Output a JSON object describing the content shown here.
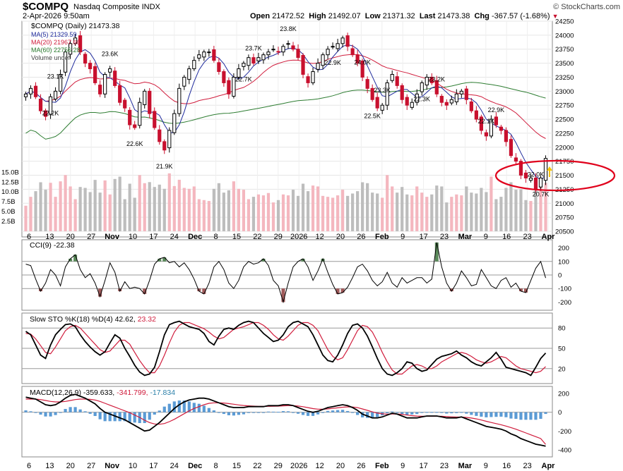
{
  "header": {
    "symbol": "$COMPQ",
    "exchange": "Nasdaq Composite INDX",
    "datetime": "2-Apr-2026 9:50am",
    "brand": "© StockCharts.com",
    "open_label": "Open",
    "open_value": "21472.52",
    "high_label": "High",
    "high_value": "21492.07",
    "low_label": "Low",
    "low_value": "21371.32",
    "last_label": "Last",
    "last_value": "21473.38",
    "chg_label": "Chg",
    "chg_value": "-367.57 (-1.68%)"
  },
  "legend": {
    "price": "$COMPQ (Daily) 21473.38",
    "ma5": "MA(5) 21329.59",
    "ma20": "MA(20) 21967.66",
    "ma60": "MA(60) 22756.28",
    "volume": "Volume undef"
  },
  "colors": {
    "up": "#000000",
    "down": "#c8102e",
    "ma5": "#1f2a9c",
    "ma20": "#d01c3c",
    "ma60": "#2e7d32",
    "vol_up": "#f4b7bf",
    "vol_down": "#bdbdbd",
    "cci_pos": "#5a8a5a",
    "cci_neg": "#a05a5a",
    "macd_hist": "#5b9bd5",
    "circle": "#e0001b",
    "arrow": "#f5c400"
  },
  "chart_data": [
    {
      "type": "candlestick",
      "title": "$COMPQ (Daily) 21473.38",
      "ylim": [
        20500,
        24250
      ],
      "y_ticks": [
        20500,
        20750,
        21000,
        21250,
        21500,
        21750,
        22000,
        22250,
        22500,
        22750,
        23000,
        23250,
        23500,
        23750,
        24000,
        24250
      ],
      "x_tick_labels": [
        "6",
        "13",
        "20",
        "27",
        "Nov",
        "10",
        "17",
        "24",
        "Dec",
        "8",
        "15",
        "22",
        "29",
        "2026",
        "12",
        "20",
        "26",
        "Feb",
        "9",
        "17",
        "23",
        "Mar",
        "9",
        "16",
        "23",
        "Apr"
      ],
      "series": [
        {
          "name": "MA(5)",
          "last": 21329.59
        },
        {
          "name": "MA(20)",
          "last": 21967.66
        },
        {
          "name": "MA(60)",
          "last": 22756.28
        }
      ],
      "annotations": [
        "23.1K",
        "22.2K",
        "22.6K",
        "23.6K",
        "21.9K",
        "23.7K",
        "22.7K",
        "23.8K",
        "22.9K",
        "24.0K",
        "22.5K",
        "23.3K",
        "22.3K",
        "23.2K",
        "22.1K",
        "22.9K",
        "22.0K",
        "20.7K"
      ],
      "close_approx": [
        22950,
        23050,
        22900,
        22650,
        22550,
        22900,
        23000,
        23300,
        23700,
        23850,
        23950,
        23700,
        23500,
        23400,
        23150,
        22950,
        23300,
        23400,
        23100,
        22800,
        22700,
        22400,
        22350,
        22800,
        23000,
        22600,
        22350,
        22100,
        21950,
        22300,
        22600,
        23050,
        23250,
        23400,
        23550,
        23650,
        23700,
        23700,
        23550,
        23350,
        23150,
        22950,
        23250,
        23400,
        23500,
        23600,
        23500,
        23600,
        23650,
        23700,
        23750,
        23700,
        23800,
        23850,
        23750,
        23600,
        23300,
        23150,
        23350,
        23500,
        23650,
        23750,
        23800,
        23850,
        23950,
        23800,
        23650,
        23500,
        23250,
        23050,
        22850,
        22700,
        22750,
        23150,
        23300,
        23100,
        22850,
        22750,
        22800,
        22950,
        23150,
        23250,
        23150,
        22950,
        22800,
        22750,
        22850,
        22950,
        23000,
        22850,
        22650,
        22500,
        22300,
        22200,
        22500,
        22400,
        22300,
        22100,
        21850,
        21750,
        21500,
        21450,
        21450,
        21250,
        21450,
        21800
      ]
    },
    {
      "type": "bar",
      "title": "Volume",
      "y_tick_labels": [
        "2.5B",
        "5.0B",
        "7.5B",
        "10.0B",
        "12.5B",
        "15.0B"
      ]
    },
    {
      "type": "line",
      "title": "CCI(9) -22.38",
      "ylim": [
        -250,
        250
      ],
      "y_ticks": [
        200,
        100,
        0,
        -100,
        -200
      ],
      "last": -22.38,
      "values": [
        80,
        70,
        -30,
        -120,
        -60,
        40,
        0,
        -80,
        60,
        120,
        150,
        40,
        -20,
        10,
        -60,
        -160,
        -40,
        90,
        20,
        -120,
        -50,
        -100,
        -90,
        -100,
        -140,
        -40,
        80,
        120,
        130,
        90,
        100,
        60,
        90,
        40,
        -30,
        -120,
        -140,
        -60,
        60,
        100,
        40,
        -60,
        -100,
        -40,
        60,
        100,
        80,
        90,
        120,
        70,
        -40,
        -80,
        -200,
        -60,
        60,
        100,
        120,
        60,
        -40,
        30,
        120,
        20,
        -70,
        -140,
        -130,
        -90,
        -20,
        60,
        80,
        30,
        -40,
        -80,
        -50,
        20,
        -60,
        -90,
        -20,
        -60,
        -40,
        -20,
        -20,
        -60,
        -30,
        240,
        60,
        -60,
        -120,
        -60,
        30,
        -20,
        -80,
        -70,
        40,
        -20,
        -80,
        -100,
        -40,
        -20,
        -90,
        -60,
        -120,
        -130,
        -40,
        50,
        100,
        -22
      ]
    },
    {
      "type": "line",
      "title": "Slow STO %K(18) %D(4) 42.62, 23.32",
      "ylim": [
        0,
        100
      ],
      "y_ticks": [
        80,
        50,
        20
      ],
      "series": [
        {
          "name": "%K(18)",
          "last": 42.62,
          "values": [
            75,
            70,
            55,
            40,
            35,
            55,
            70,
            78,
            85,
            86,
            82,
            70,
            60,
            52,
            45,
            40,
            45,
            58,
            70,
            65,
            50,
            38,
            25,
            15,
            10,
            12,
            22,
            45,
            70,
            85,
            88,
            90,
            86,
            82,
            80,
            78,
            72,
            60,
            55,
            68,
            78,
            80,
            78,
            84,
            88,
            90,
            88,
            80,
            72,
            66,
            60,
            62,
            70,
            82,
            88,
            90,
            86,
            82,
            70,
            55,
            40,
            32,
            30,
            40,
            55,
            72,
            84,
            86,
            80,
            68,
            52,
            35,
            20,
            12,
            10,
            14,
            20,
            30,
            28,
            20,
            16,
            18,
            26,
            34,
            38,
            40,
            42,
            46,
            40,
            36,
            30,
            26,
            24,
            30,
            36,
            44,
            34,
            22,
            20,
            18,
            16,
            14,
            10,
            22,
            35,
            43
          ]
        },
        {
          "name": "%D(4)",
          "last": 23.32,
          "values": [
            72,
            71,
            64,
            54,
            44,
            42,
            52,
            64,
            76,
            82,
            84,
            80,
            72,
            64,
            56,
            48,
            44,
            46,
            54,
            62,
            62,
            56,
            44,
            32,
            22,
            14,
            14,
            24,
            40,
            58,
            74,
            84,
            88,
            88,
            85,
            82,
            79,
            74,
            68,
            64,
            66,
            72,
            78,
            80,
            82,
            85,
            88,
            88,
            84,
            78,
            70,
            64,
            62,
            68,
            76,
            84,
            88,
            88,
            84,
            76,
            62,
            48,
            38,
            33,
            36,
            48,
            62,
            76,
            84,
            82,
            74,
            60,
            44,
            30,
            18,
            12,
            12,
            18,
            24,
            26,
            24,
            20,
            20,
            24,
            30,
            34,
            38,
            42,
            44,
            42,
            38,
            33,
            30,
            28,
            30,
            34,
            38,
            36,
            30,
            24,
            20,
            18,
            16,
            14,
            16,
            23
          ]
        }
      ]
    },
    {
      "type": "line",
      "title": "MACD(12,26,9) -359.633, -341.799, -17.834",
      "ylim": [
        -460,
        260
      ],
      "y_ticks": [
        200,
        0,
        -200,
        -400
      ],
      "series": [
        {
          "name": "MACD(12,26,9)",
          "last": -359.633,
          "values": [
            160,
            150,
            140,
            110,
            80,
            70,
            80,
            110,
            150,
            180,
            190,
            170,
            150,
            120,
            90,
            40,
            0,
            -20,
            -40,
            -60,
            -80,
            -110,
            -140,
            -170,
            -200,
            -190,
            -150,
            -110,
            -60,
            -10,
            40,
            80,
            110,
            130,
            140,
            150,
            150,
            140,
            120,
            100,
            80,
            60,
            50,
            50,
            50,
            60,
            60,
            60,
            60,
            70,
            70,
            70,
            80,
            80,
            70,
            50,
            30,
            10,
            0,
            10,
            30,
            50,
            60,
            70,
            80,
            70,
            50,
            20,
            -20,
            -40,
            -60,
            -60,
            -50,
            -30,
            -10,
            -20,
            -40,
            -60,
            -60,
            -60,
            -50,
            -40,
            -40,
            -40,
            -50,
            -60,
            -60,
            -60,
            -50,
            -70,
            -90,
            -110,
            -130,
            -150,
            -160,
            -170,
            -180,
            -200,
            -230,
            -250,
            -280,
            -300,
            -320,
            -340,
            -350,
            -360
          ]
        },
        {
          "name": "Signal",
          "last": -341.799,
          "values": [
            140,
            140,
            140,
            135,
            125,
            115,
            110,
            110,
            115,
            125,
            135,
            140,
            140,
            137,
            130,
            115,
            95,
            75,
            55,
            35,
            15,
            -5,
            -30,
            -55,
            -85,
            -110,
            -125,
            -128,
            -120,
            -100,
            -75,
            -45,
            -15,
            15,
            40,
            60,
            80,
            95,
            100,
            100,
            98,
            92,
            85,
            78,
            72,
            68,
            65,
            63,
            62,
            63,
            64,
            65,
            68,
            70,
            70,
            66,
            59,
            49,
            39,
            33,
            32,
            36,
            41,
            47,
            54,
            57,
            56,
            49,
            35,
            20,
            4,
            -9,
            -17,
            -20,
            -18,
            -18,
            -22,
            -30,
            -36,
            -41,
            -43,
            -42,
            -42,
            -42,
            -43,
            -46,
            -49,
            -51,
            -51,
            -55,
            -62,
            -71,
            -83,
            -96,
            -109,
            -121,
            -133,
            -147,
            -163,
            -180,
            -200,
            -220,
            -240,
            -260,
            -280,
            -342
          ]
        },
        {
          "name": "Histogram",
          "last": -17.834
        }
      ]
    }
  ]
}
